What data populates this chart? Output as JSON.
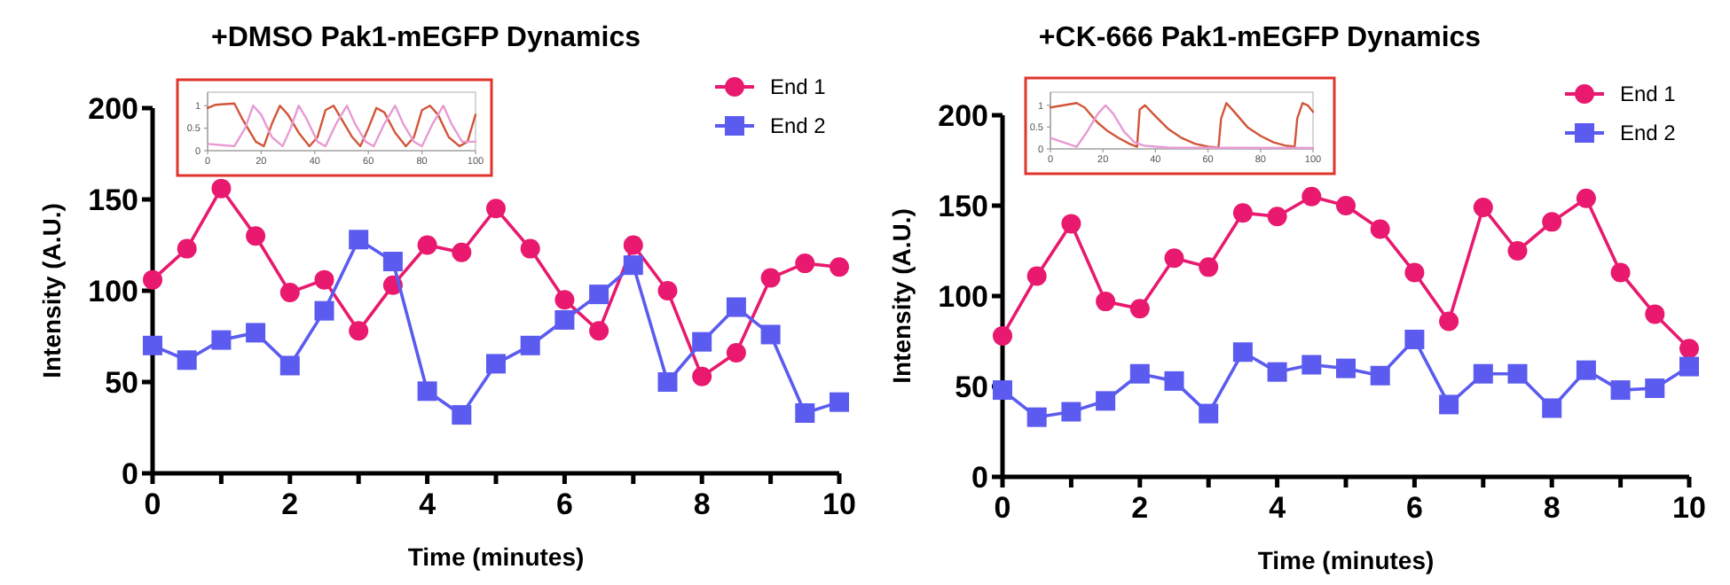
{
  "chart_data": [
    {
      "type": "line",
      "title": "+DMSO Pak1-mEGFP Dynamics",
      "xlabel": "Time (minutes)",
      "ylabel": "Intensity (A.U.)",
      "legend": "top right",
      "x": [
        0,
        0.5,
        1,
        1.5,
        2,
        2.5,
        3,
        3.5,
        4,
        4.5,
        5,
        5.5,
        6,
        6.5,
        7,
        7.5,
        8,
        8.5,
        9,
        9.5,
        10
      ],
      "xlim": [
        0,
        10
      ],
      "xticks": [
        0,
        {
          "value": 1,
          "label": null
        },
        2,
        {
          "value": 3,
          "label": null
        },
        4,
        {
          "value": 5,
          "label": null
        },
        6,
        {
          "value": 7,
          "label": null
        },
        8,
        {
          "value": 9,
          "label": null
        },
        10
      ],
      "ylim": [
        0,
        200
      ],
      "yticks": [
        0,
        50,
        100,
        150,
        200
      ],
      "series": [
        {
          "name": "End 1",
          "color": "#e8196e",
          "marker": "circle",
          "values": [
            106,
            123,
            156,
            130,
            99,
            106,
            78,
            103,
            125,
            121,
            145,
            123,
            95,
            78,
            125,
            100,
            53,
            66,
            107,
            115,
            113
          ]
        },
        {
          "name": "End 2",
          "color": "#5b5bf0",
          "marker": "square",
          "values": [
            70,
            62,
            73,
            77,
            59,
            89,
            128,
            116,
            45,
            32,
            60,
            70,
            84,
            98,
            114,
            50,
            72,
            91,
            76,
            33,
            39
          ]
        }
      ]
    },
    {
      "type": "line",
      "xlim": [
        0,
        100
      ],
      "xticks": [
        0,
        20,
        40,
        60,
        80,
        100
      ],
      "ylim": [
        0,
        1.3
      ],
      "yticks": [
        0,
        0.5,
        1
      ],
      "marker": "none",
      "series": [
        {
          "color": "#d2553a",
          "x": [
            0,
            3,
            10,
            13,
            18,
            21,
            24,
            27,
            30,
            34,
            38,
            41,
            44,
            47,
            50,
            54,
            57,
            60,
            63,
            66,
            70,
            74,
            77,
            80,
            83,
            86,
            90,
            94,
            97,
            100
          ],
          "values": [
            0.95,
            1.02,
            1.05,
            0.7,
            0.2,
            0.1,
            0.6,
            1.0,
            0.8,
            0.4,
            0.1,
            0.3,
            0.9,
            1.0,
            0.7,
            0.3,
            0.1,
            0.5,
            0.95,
            0.85,
            0.4,
            0.1,
            0.3,
            0.9,
            1.0,
            0.8,
            0.3,
            0.1,
            0.2,
            0.8
          ]
        },
        {
          "color": "#e79bd3",
          "x": [
            0,
            10,
            14,
            17,
            20,
            24,
            28,
            31,
            34,
            37,
            41,
            44,
            48,
            52,
            55,
            59,
            62,
            66,
            70,
            73,
            77,
            80,
            84,
            88,
            91,
            95,
            100
          ],
          "values": [
            0.15,
            0.1,
            0.5,
            1.0,
            0.8,
            0.3,
            0.1,
            0.5,
            1.0,
            0.7,
            0.2,
            0.1,
            0.6,
            1.0,
            0.6,
            0.2,
            0.1,
            0.6,
            1.0,
            0.6,
            0.2,
            0.1,
            0.6,
            1.0,
            0.6,
            0.2,
            0.2
          ]
        }
      ]
    },
    {
      "type": "line",
      "title": "+CK-666 Pak1-mEGFP Dynamics",
      "xlabel": "Time (minutes)",
      "ylabel": "Intensity (A.U.)",
      "legend": "top right",
      "x": [
        0,
        0.5,
        1,
        1.5,
        2,
        2.5,
        3,
        3.5,
        4,
        4.5,
        5,
        5.5,
        6,
        6.5,
        7,
        7.5,
        8,
        8.5,
        9,
        9.5,
        10
      ],
      "xlim": [
        0,
        10
      ],
      "xticks": [
        0,
        {
          "value": 1,
          "label": null
        },
        2,
        {
          "value": 3,
          "label": null
        },
        4,
        {
          "value": 5,
          "label": null
        },
        6,
        {
          "value": 7,
          "label": null
        },
        8,
        {
          "value": 9,
          "label": null
        },
        10
      ],
      "ylim": [
        0,
        200
      ],
      "yticks": [
        0,
        50,
        100,
        150,
        200
      ],
      "series": [
        {
          "name": "End 1",
          "color": "#e8196e",
          "marker": "circle",
          "values": [
            78,
            111,
            140,
            97,
            93,
            121,
            116,
            146,
            144,
            155,
            150,
            137,
            113,
            86,
            149,
            125,
            141,
            154,
            113,
            90,
            71
          ]
        },
        {
          "name": "End 2",
          "color": "#5b5bf0",
          "marker": "square",
          "values": [
            48,
            33,
            36,
            42,
            57,
            53,
            35,
            69,
            58,
            62,
            60,
            56,
            76,
            40,
            57,
            57,
            38,
            59,
            48,
            49,
            61
          ]
        }
      ]
    },
    {
      "type": "line",
      "xlim": [
        0,
        100
      ],
      "xticks": [
        0,
        20,
        40,
        60,
        80,
        100
      ],
      "ylim": [
        0,
        1.3
      ],
      "yticks": [
        0,
        0.5,
        1
      ],
      "marker": "none",
      "series": [
        {
          "color": "#d2553a",
          "x": [
            0,
            5,
            10,
            13,
            18,
            22,
            26,
            30,
            33,
            34,
            36,
            40,
            45,
            50,
            55,
            60,
            64,
            65,
            67,
            70,
            75,
            80,
            85,
            90,
            93,
            94,
            96,
            98,
            100
          ],
          "values": [
            0.95,
            1.0,
            1.05,
            0.95,
            0.6,
            0.4,
            0.25,
            0.12,
            0.05,
            0.9,
            1.0,
            0.75,
            0.45,
            0.25,
            0.12,
            0.05,
            0.03,
            0.7,
            1.05,
            0.85,
            0.5,
            0.3,
            0.15,
            0.07,
            0.05,
            0.7,
            1.05,
            1.0,
            0.85
          ]
        },
        {
          "color": "#e79bd3",
          "x": [
            0,
            5,
            10,
            14,
            18,
            21,
            24,
            28,
            32,
            36,
            45,
            100
          ],
          "values": [
            0.25,
            0.15,
            0.05,
            0.4,
            0.8,
            1.0,
            0.8,
            0.4,
            0.15,
            0.07,
            0.03,
            0.02
          ]
        }
      ]
    }
  ]
}
